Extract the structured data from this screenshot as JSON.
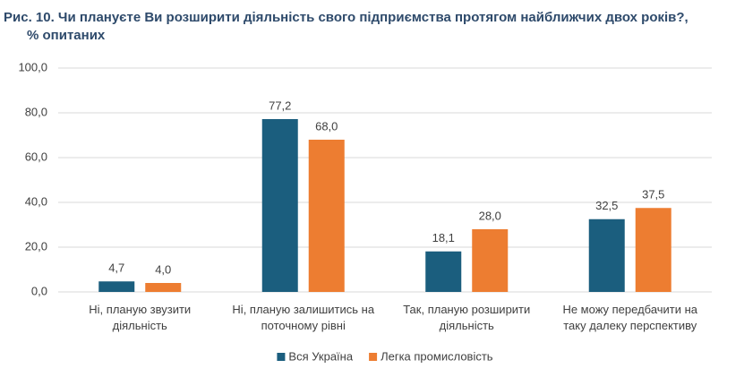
{
  "chart_data": {
    "type": "bar",
    "title": "Рис.  10. Чи плануєте Ви розширити діяльність свого підприємства протягом найближчих двох років?,",
    "subtitle": "% опитаних",
    "categories": [
      "Ні, планую звузити діяльність",
      "Ні, планую залишитись на поточному рівні",
      "Так, планую розширити діяльність",
      "Не можу передбачити на таку далеку перспективу"
    ],
    "series": [
      {
        "name": "Вся Україна",
        "color": "#1b5e7e",
        "values": [
          4.7,
          77.2,
          18.1,
          32.5
        ],
        "value_labels": [
          "4,7",
          "77,2",
          "18,1",
          "32,5"
        ]
      },
      {
        "name": "Легка промисловість",
        "color": "#ed7d31",
        "values": [
          4.0,
          68.0,
          28.0,
          37.5
        ],
        "value_labels": [
          "4,0",
          "68,0",
          "28,0",
          "37,5"
        ]
      }
    ],
    "ylim": [
      0,
      100
    ],
    "yticks": [
      {
        "value": 0,
        "label": "0,0"
      },
      {
        "value": 20,
        "label": "20,0"
      },
      {
        "value": 40,
        "label": "40,0"
      },
      {
        "value": 60,
        "label": "60,0"
      },
      {
        "value": 80,
        "label": "80,0"
      },
      {
        "value": 100,
        "label": "100,0"
      }
    ],
    "grid": true,
    "legend": "bottom"
  }
}
